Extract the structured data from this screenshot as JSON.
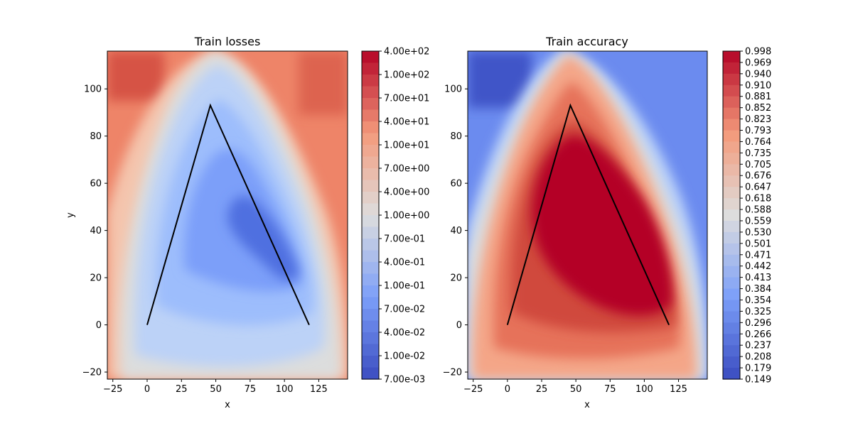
{
  "chart_data": [
    {
      "type": "heatmap",
      "title": "Train losses",
      "xlabel": "x",
      "ylabel": "y",
      "xlim": [
        -29,
        146
      ],
      "ylim": [
        -23,
        116
      ],
      "x_ticks": [
        "−25",
        "0",
        "25",
        "50",
        "75",
        "100",
        "125"
      ],
      "y_ticks": [
        "−20",
        "0",
        "20",
        "40",
        "60",
        "80",
        "100"
      ],
      "x_tick_values": [
        -25,
        0,
        25,
        50,
        75,
        100,
        125
      ],
      "y_tick_values": [
        -20,
        0,
        20,
        40,
        60,
        80,
        100
      ],
      "colormap": "coolwarm",
      "scale": "log",
      "colorbar_labels": [
        "4.00e+02",
        "1.00e+02",
        "7.00e+01",
        "4.00e+01",
        "1.00e+01",
        "7.00e+00",
        "4.00e+00",
        "1.00e+00",
        "7.00e-01",
        "4.00e-01",
        "1.00e-01",
        "7.00e-02",
        "4.00e-02",
        "1.00e-02",
        "7.00e-03"
      ],
      "minimum_region": [
        {
          "x": 75,
          "y": 40
        },
        {
          "x": 85,
          "y": 30
        },
        {
          "x": 95,
          "y": 22
        }
      ],
      "path": [
        {
          "x": 0,
          "y": 0
        },
        {
          "x": 46,
          "y": 93
        },
        {
          "x": 118,
          "y": 0
        }
      ]
    },
    {
      "type": "heatmap",
      "title": "Train accuracy",
      "xlabel": "x",
      "ylabel": "",
      "xlim": [
        -29,
        146
      ],
      "ylim": [
        -23,
        116
      ],
      "x_ticks": [
        "−25",
        "0",
        "25",
        "50",
        "75",
        "100",
        "125"
      ],
      "y_ticks": [
        "−20",
        "0",
        "20",
        "40",
        "60",
        "80",
        "100"
      ],
      "x_tick_values": [
        -25,
        0,
        25,
        50,
        75,
        100,
        125
      ],
      "y_tick_values": [
        -20,
        0,
        20,
        40,
        60,
        80,
        100
      ],
      "colormap": "coolwarm",
      "scale": "linear",
      "colorbar_labels": [
        "0.998",
        "0.969",
        "0.940",
        "0.910",
        "0.881",
        "0.852",
        "0.823",
        "0.793",
        "0.764",
        "0.735",
        "0.705",
        "0.676",
        "0.647",
        "0.618",
        "0.588",
        "0.559",
        "0.530",
        "0.501",
        "0.471",
        "0.442",
        "0.413",
        "0.384",
        "0.354",
        "0.325",
        "0.296",
        "0.266",
        "0.237",
        "0.208",
        "0.179",
        "0.149"
      ],
      "maximum_region": [
        {
          "x": 50,
          "y": 80
        },
        {
          "x": 75,
          "y": 45
        },
        {
          "x": 110,
          "y": 5
        }
      ],
      "path": [
        {
          "x": 0,
          "y": 0
        },
        {
          "x": 46,
          "y": 93
        },
        {
          "x": 118,
          "y": 0
        }
      ]
    }
  ],
  "colors": {
    "low": "#3b4cc0",
    "mid": "#dddddd",
    "high": "#b40426",
    "path": "#000000"
  }
}
